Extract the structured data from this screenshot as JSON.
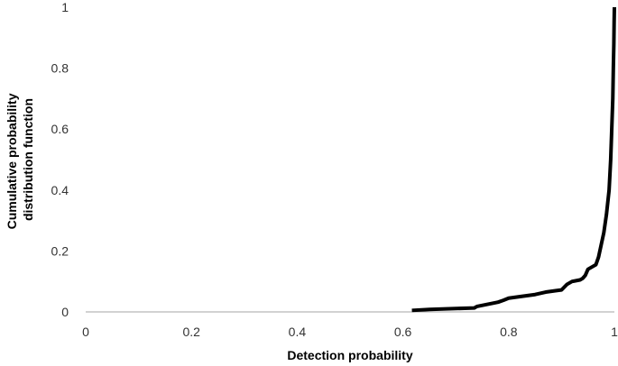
{
  "chart_data": {
    "type": "line",
    "title": "",
    "xlabel": "Detection probability",
    "ylabel_lines": [
      "Cumulative probability",
      "distribution function"
    ],
    "xlim": [
      0,
      1
    ],
    "ylim": [
      0,
      1
    ],
    "x_ticks": [
      0,
      0.2,
      0.4,
      0.6,
      0.8,
      1
    ],
    "x_tick_labels": [
      "0",
      "0.2",
      "0.4",
      "0.6",
      "0.8",
      "1"
    ],
    "y_ticks": [
      0,
      0.2,
      0.4,
      0.6,
      0.8,
      1
    ],
    "y_tick_labels": [
      "0",
      "0.2",
      "0.4",
      "0.6",
      "0.8",
      "1"
    ],
    "grid": false,
    "legend": "none",
    "series": [
      {
        "color": "#000000",
        "x": [
          0.617,
          0.65,
          0.7,
          0.735,
          0.74,
          0.76,
          0.78,
          0.79,
          0.8,
          0.82,
          0.85,
          0.87,
          0.89,
          0.9,
          0.91,
          0.92,
          0.935,
          0.94,
          0.945,
          0.95,
          0.96,
          0.965,
          0.97,
          0.975,
          0.98,
          0.985,
          0.99,
          0.993,
          0.995,
          0.997,
          0.998,
          0.999,
          0.9995,
          1.0
        ],
        "y": [
          0.005,
          0.008,
          0.011,
          0.013,
          0.018,
          0.025,
          0.032,
          0.038,
          0.045,
          0.05,
          0.057,
          0.065,
          0.07,
          0.072,
          0.09,
          0.1,
          0.105,
          0.11,
          0.12,
          0.14,
          0.15,
          0.155,
          0.18,
          0.22,
          0.26,
          0.32,
          0.4,
          0.5,
          0.6,
          0.7,
          0.8,
          0.88,
          0.95,
          1.0
        ]
      }
    ]
  }
}
